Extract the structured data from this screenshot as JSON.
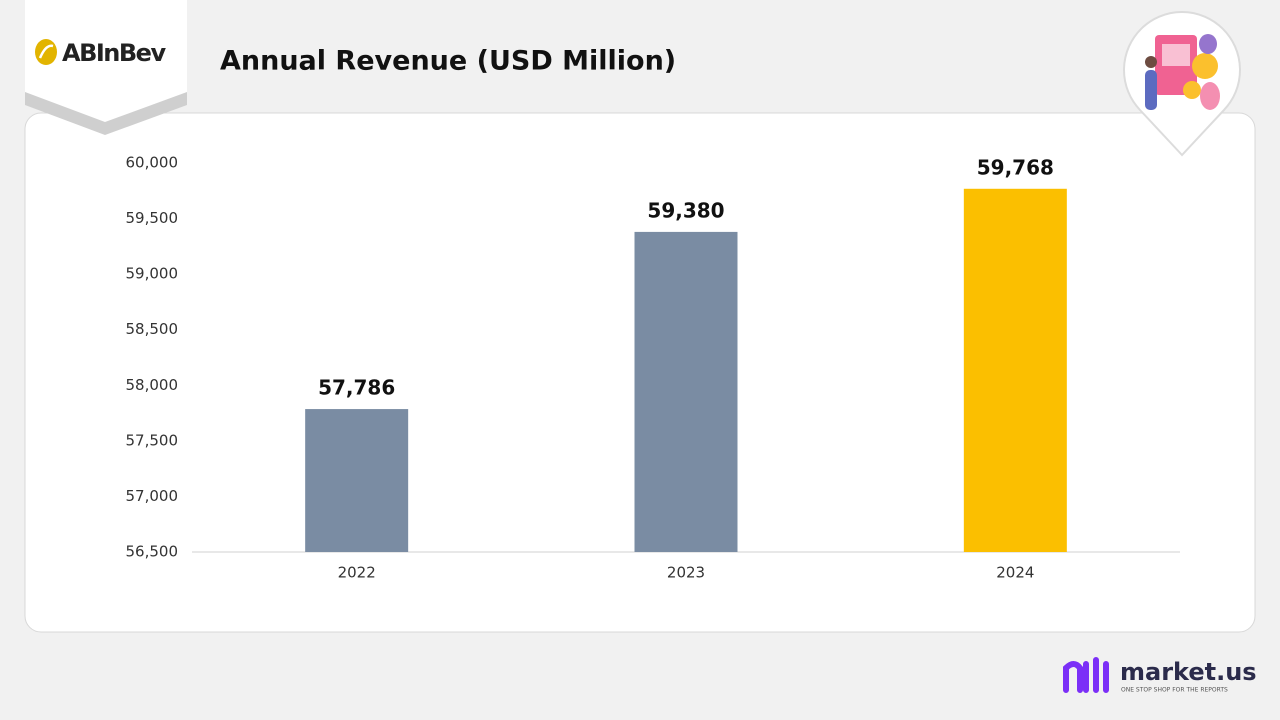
{
  "brand": "ABInBev",
  "footer": {
    "name": "market.us",
    "tagline": "ONE STOP SHOP FOR THE REPORTS"
  },
  "chart_data": {
    "type": "bar",
    "title": "Annual Revenue (USD Million)",
    "categories": [
      "2022",
      "2023",
      "2024"
    ],
    "values": [
      57786,
      59380,
      59768
    ],
    "value_labels": [
      "57,786",
      "59,380",
      "59,768"
    ],
    "colors": [
      "#7a8ca3",
      "#7a8ca3",
      "#fbbf00"
    ],
    "ylim": [
      56500,
      60000
    ],
    "yticks": [
      {
        "value": 56500,
        "label": "56,500"
      },
      {
        "value": 57000,
        "label": "57,000"
      },
      {
        "value": 57500,
        "label": "57,500"
      },
      {
        "value": 58000,
        "label": "58,000"
      },
      {
        "value": 58500,
        "label": "58,500"
      },
      {
        "value": 59000,
        "label": "59,000"
      },
      {
        "value": 59500,
        "label": "59,500"
      },
      {
        "value": 60000,
        "label": "60,000"
      }
    ],
    "grid": false
  }
}
